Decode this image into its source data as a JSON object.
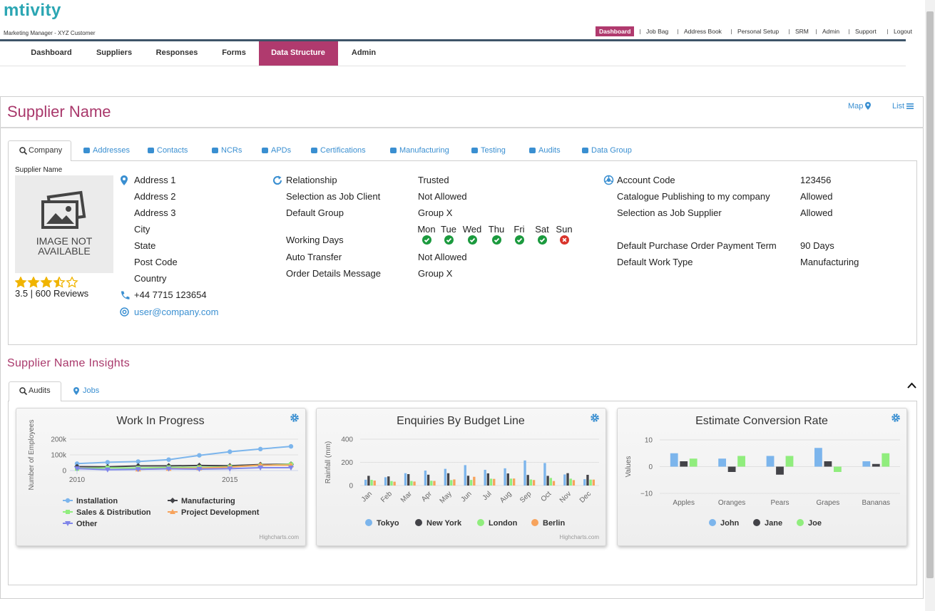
{
  "header": {
    "logo": "mtivity",
    "subtitle": "Marketing Manager - XYZ Customer",
    "links": [
      "Dashboard",
      "Job Bag",
      "Address Book",
      "Personal Setup",
      "SRM",
      "Admin",
      "Support",
      "Logout"
    ],
    "active_link": "Dashboard"
  },
  "nav": {
    "items": [
      "Dashboard",
      "Suppliers",
      "Responses",
      "Forms",
      "Data Structure",
      "Admin"
    ],
    "active": "Data Structure"
  },
  "page": {
    "title": "Supplier Name",
    "views": [
      "Map",
      "List"
    ]
  },
  "tabs": {
    "items": [
      "Company",
      "Addresses",
      "Contacts",
      "NCRs",
      "APDs",
      "Certifications",
      "Manufacturing",
      "Testing",
      "Audits",
      "Data Group"
    ],
    "active": "Company"
  },
  "company": {
    "image_caption": "Supplier Name",
    "image_text": "IMAGE NOT AVAILABLE",
    "rating": 3.5,
    "rating_label": "3.5 | 600 Reviews",
    "address": [
      "Address 1",
      "Address 2",
      "Address 3",
      "City",
      "State",
      "Post Code",
      "Country"
    ],
    "phone": "+44 7715 123654",
    "email": "user@company.com",
    "relationship": [
      {
        "label": "Relationship",
        "value": "Trusted"
      },
      {
        "label": "Selection as Job Client",
        "value": "Not Allowed"
      },
      {
        "label": "Default Group",
        "value": "Group X"
      },
      {
        "label": "Working Days",
        "days": [
          {
            "name": "Mon",
            "available": true
          },
          {
            "name": "Tue",
            "available": true
          },
          {
            "name": "Wed",
            "available": true
          },
          {
            "name": "Thu",
            "available": true
          },
          {
            "name": "Fri",
            "available": true
          },
          {
            "name": "Sat",
            "available": true
          },
          {
            "name": "Sun",
            "available": false
          }
        ]
      },
      {
        "label": "Auto Transfer",
        "value": "Not Allowed"
      },
      {
        "label": "Order Details Message",
        "value": "Group X"
      }
    ],
    "account": [
      {
        "label": "Account Code",
        "value": "123456"
      },
      {
        "label": "Catalogue Publishing to my company",
        "value": "Allowed"
      },
      {
        "label": "Selection as Job Supplier",
        "value": "Allowed"
      },
      {
        "label": "Default Purchase Order Payment Term",
        "value": "90 Days"
      },
      {
        "label": "Default Work Type",
        "value": "Manufacturing"
      }
    ]
  },
  "insights": {
    "title": "Supplier Name Insights",
    "tabs": [
      "Audits",
      "Jobs"
    ],
    "active": "Audits"
  },
  "chart_data": [
    {
      "type": "line",
      "title": "Work In Progress",
      "y_label": "Number of Employees",
      "credits": "Highcharts.com",
      "x": [
        2010,
        2011,
        2012,
        2013,
        2014,
        2015,
        2016,
        2017
      ],
      "xlim": [
        2010,
        2017
      ],
      "xticks": [
        2010,
        2015
      ],
      "ylim": [
        0,
        200000
      ],
      "yticks": [
        0,
        {
          "value": 100000,
          "label": "100k"
        },
        {
          "value": 200000,
          "label": "200k"
        }
      ],
      "grid": true,
      "series": [
        {
          "name": "Installation",
          "color": "#7cb5ec",
          "values": [
            43934,
            52503,
            57177,
            69658,
            97031,
            119931,
            137133,
            154175
          ]
        },
        {
          "name": "Manufacturing",
          "color": "#434348",
          "values": [
            24916,
            24064,
            29742,
            29851,
            32490,
            30282,
            38121,
            40434
          ]
        },
        {
          "name": "Sales & Distribution",
          "color": "#90ed7d",
          "values": [
            11744,
            17722,
            16005,
            19771,
            20185,
            24377,
            32147,
            39387
          ]
        },
        {
          "name": "Project Development",
          "color": "#f7a35c",
          "values": [
            null,
            null,
            7988,
            12169,
            15112,
            22452,
            34400,
            34227
          ]
        },
        {
          "name": "Other",
          "color": "#8085e9",
          "values": [
            12908,
            5948,
            8105,
            11248,
            8989,
            11816,
            18274,
            18111
          ]
        }
      ]
    },
    {
      "type": "bar",
      "title": "Enquiries By Budget Line",
      "y_label": "Rainfall (mm)",
      "credits": "Highcharts.com",
      "categories": [
        "Jan",
        "Feb",
        "Mar",
        "Apr",
        "May",
        "Jun",
        "Jul",
        "Aug",
        "Sep",
        "Oct",
        "Nov",
        "Dec"
      ],
      "ylim": [
        0,
        400
      ],
      "yticks": [
        0,
        200,
        400
      ],
      "grid": true,
      "series": [
        {
          "name": "Tokyo",
          "color": "#7cb5ec",
          "values": [
            49.9,
            71.5,
            106.4,
            129.2,
            144.0,
            176.0,
            135.6,
            148.5,
            216.4,
            194.1,
            95.6,
            54.4
          ]
        },
        {
          "name": "New York",
          "color": "#434348",
          "values": [
            83.6,
            78.8,
            98.5,
            93.4,
            106.0,
            84.5,
            105.0,
            104.3,
            91.2,
            83.5,
            106.6,
            92.3
          ]
        },
        {
          "name": "London",
          "color": "#90ed7d",
          "values": [
            48.9,
            38.8,
            39.3,
            41.4,
            47.0,
            48.3,
            59.0,
            59.6,
            52.4,
            65.2,
            59.3,
            51.2
          ]
        },
        {
          "name": "Berlin",
          "color": "#f7a35c",
          "values": [
            42.4,
            33.2,
            34.5,
            39.7,
            52.6,
            75.5,
            57.4,
            60.4,
            47.6,
            39.1,
            46.8,
            51.1
          ]
        }
      ]
    },
    {
      "type": "bar",
      "title": "Estimate Conversion Rate",
      "y_label": "Values",
      "categories": [
        "Apples",
        "Oranges",
        "Pears",
        "Grapes",
        "Bananas"
      ],
      "ylim": [
        -10,
        10
      ],
      "yticks": [
        {
          "value": -10,
          "label": "−10"
        },
        0,
        10
      ],
      "grid": true,
      "series": [
        {
          "name": "John",
          "color": "#7cb5ec",
          "values": [
            5,
            3,
            4,
            7,
            2
          ]
        },
        {
          "name": "Jane",
          "color": "#434348",
          "values": [
            2,
            -2,
            -3,
            2,
            1
          ]
        },
        {
          "name": "Joe",
          "color": "#90ed7d",
          "values": [
            3,
            4,
            4,
            -2,
            5
          ]
        }
      ]
    }
  ]
}
